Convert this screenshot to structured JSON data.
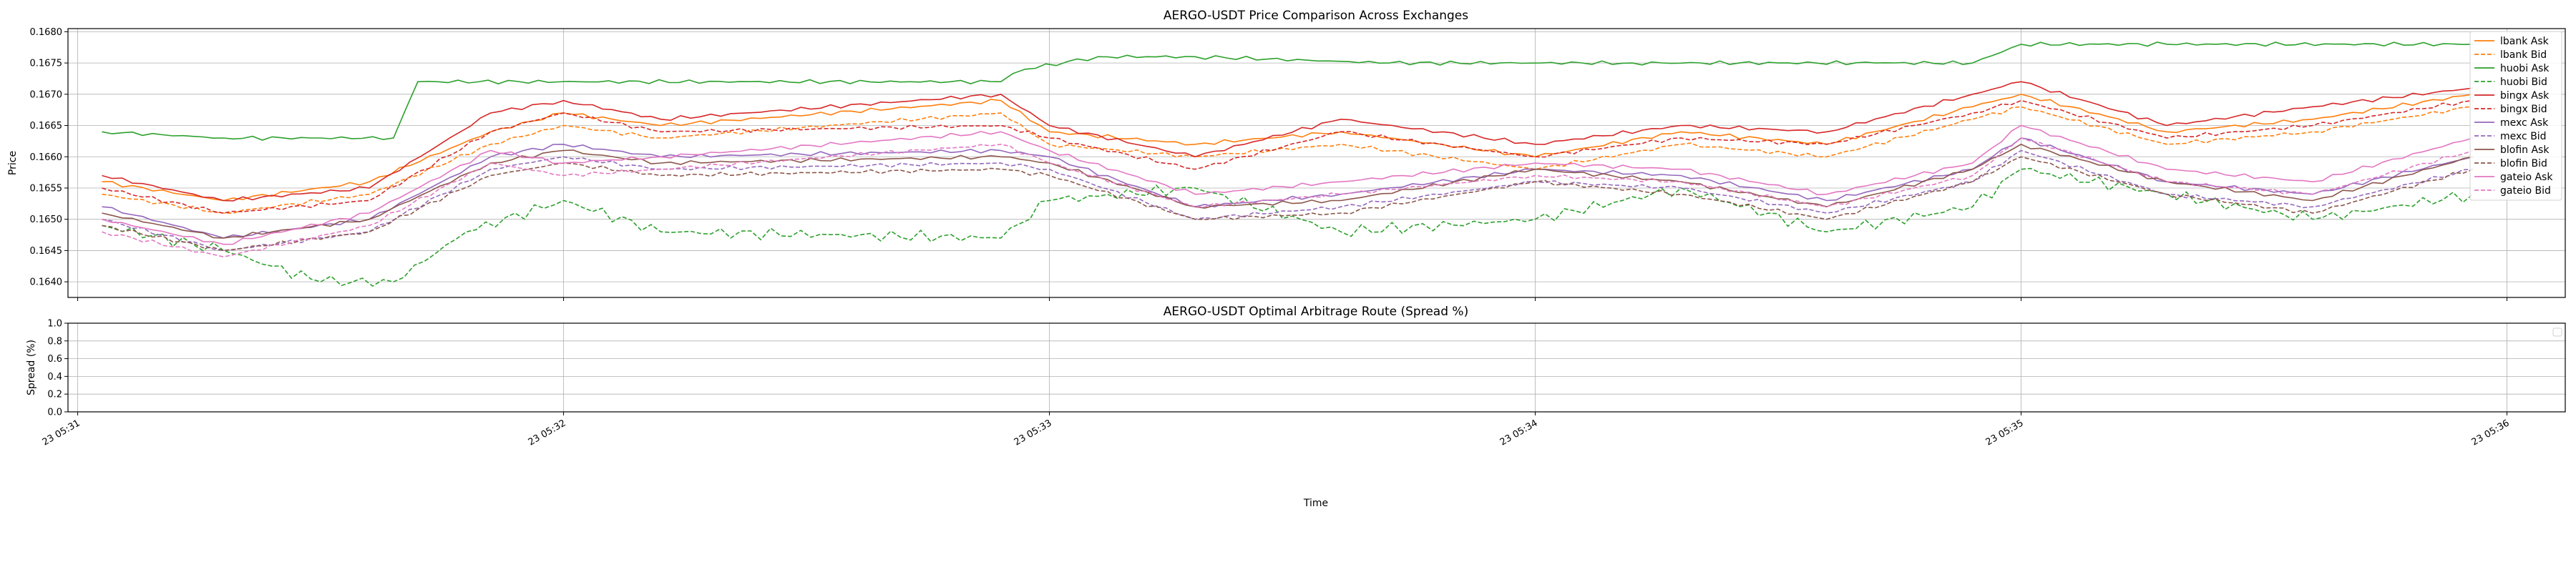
{
  "chart_data": [
    {
      "type": "line",
      "title": "AERGO-USDT Price Comparison Across Exchanges",
      "xlabel": "",
      "ylabel": "Price",
      "x_time_range": [
        "2023 05:31:03",
        "2023 05:35:57"
      ],
      "ylim": [
        0.16375,
        0.16805
      ],
      "y_ticks": [
        "0.1640",
        "0.1645",
        "0.1650",
        "0.1655",
        "0.1660",
        "0.1665",
        "0.1670",
        "0.1675",
        "0.1680"
      ],
      "y_tick_values": [
        0.164,
        0.1645,
        0.165,
        0.1655,
        0.166,
        0.1665,
        0.167,
        0.1675,
        0.168
      ],
      "x_ticks": [
        "23 05:31",
        "23 05:32",
        "23 05:33",
        "23 05:34",
        "23 05:35",
        "23 05:36"
      ],
      "x_tick_minutes": [
        31,
        32,
        33,
        34,
        35,
        36
      ],
      "grid": true,
      "legend_position": "right",
      "series": [
        {
          "name": "lbank Ask",
          "color": "#ff7f0e",
          "dash": "solid",
          "x": [
            31.05,
            31.3,
            31.6,
            31.85,
            32.0,
            32.2,
            32.9,
            33.0,
            33.3,
            33.6,
            34.0,
            34.3,
            34.6,
            34.9,
            35.0,
            35.3,
            35.6,
            35.93
          ],
          "y": [
            0.1656,
            0.1653,
            0.1656,
            0.1664,
            0.1667,
            0.1665,
            0.1669,
            0.1664,
            0.1662,
            0.1664,
            0.166,
            0.1664,
            0.1662,
            0.1668,
            0.167,
            0.1664,
            0.1666,
            0.167
          ]
        },
        {
          "name": "lbank Bid",
          "color": "#ff7f0e",
          "dash": "dashed",
          "x": [
            31.05,
            31.3,
            31.6,
            31.85,
            32.0,
            32.2,
            32.9,
            33.0,
            33.3,
            33.6,
            34.0,
            34.3,
            34.6,
            34.9,
            35.0,
            35.3,
            35.6,
            35.93
          ],
          "y": [
            0.1654,
            0.1651,
            0.1654,
            0.1662,
            0.1665,
            0.1663,
            0.1667,
            0.1662,
            0.166,
            0.1662,
            0.1658,
            0.1662,
            0.166,
            0.1666,
            0.1668,
            0.1662,
            0.1664,
            0.1668
          ]
        },
        {
          "name": "huobi Ask",
          "color": "#2ca02c",
          "dash": "solid",
          "x": [
            31.05,
            31.3,
            31.5,
            31.65,
            31.7,
            32.9,
            32.95,
            33.1,
            33.3,
            33.7,
            34.2,
            34.5,
            34.7,
            34.9,
            35.0,
            35.3,
            35.93
          ],
          "y": [
            0.1664,
            0.1663,
            0.1663,
            0.1663,
            0.1672,
            0.1672,
            0.1674,
            0.1676,
            0.1676,
            0.1675,
            0.1675,
            0.1675,
            0.1675,
            0.1675,
            0.1678,
            0.1678,
            0.1678
          ]
        },
        {
          "name": "huobi Bid",
          "color": "#2ca02c",
          "dash": "dashed",
          "x": [
            31.05,
            31.3,
            31.5,
            31.65,
            31.8,
            32.0,
            32.2,
            32.9,
            33.0,
            33.3,
            33.6,
            34.0,
            34.3,
            34.6,
            34.9,
            35.0,
            35.3,
            35.6,
            35.93
          ],
          "y": [
            0.1649,
            0.1645,
            0.164,
            0.164,
            0.1648,
            0.1653,
            0.1648,
            0.1647,
            0.1653,
            0.1655,
            0.1648,
            0.165,
            0.1655,
            0.1648,
            0.1652,
            0.1658,
            0.1654,
            0.165,
            0.1654
          ]
        },
        {
          "name": "bingx Ask",
          "color": "#d62728",
          "dash": "solid",
          "x": [
            31.05,
            31.3,
            31.6,
            31.85,
            32.0,
            32.2,
            32.9,
            33.0,
            33.3,
            33.6,
            34.0,
            34.3,
            34.6,
            34.9,
            35.0,
            35.3,
            35.6,
            35.93
          ],
          "y": [
            0.1657,
            0.1653,
            0.1655,
            0.1667,
            0.1669,
            0.1666,
            0.167,
            0.1665,
            0.166,
            0.1666,
            0.1662,
            0.1665,
            0.1664,
            0.167,
            0.1672,
            0.1665,
            0.1668,
            0.1671
          ]
        },
        {
          "name": "bingx Bid",
          "color": "#d62728",
          "dash": "dashed",
          "x": [
            31.05,
            31.3,
            31.6,
            31.85,
            32.0,
            32.2,
            32.9,
            33.0,
            33.3,
            33.6,
            34.0,
            34.3,
            34.6,
            34.9,
            35.0,
            35.3,
            35.6,
            35.93
          ],
          "y": [
            0.1655,
            0.1651,
            0.1653,
            0.1664,
            0.1667,
            0.1664,
            0.1665,
            0.1663,
            0.1658,
            0.1664,
            0.166,
            0.1663,
            0.1662,
            0.1667,
            0.1669,
            0.1663,
            0.1665,
            0.1669
          ]
        },
        {
          "name": "mexc Ask",
          "color": "#9467bd",
          "dash": "solid",
          "x": [
            31.05,
            31.3,
            31.6,
            31.85,
            32.0,
            32.2,
            32.9,
            33.0,
            33.3,
            33.6,
            34.0,
            34.3,
            34.6,
            34.9,
            35.0,
            35.3,
            35.6,
            35.93
          ],
          "y": [
            0.1652,
            0.1647,
            0.165,
            0.166,
            0.1662,
            0.166,
            0.1661,
            0.166,
            0.1652,
            0.1654,
            0.1658,
            0.1657,
            0.1653,
            0.1658,
            0.1663,
            0.1656,
            0.1654,
            0.166
          ]
        },
        {
          "name": "mexc Bid",
          "color": "#9467bd",
          "dash": "dashed",
          "x": [
            31.05,
            31.3,
            31.6,
            31.85,
            32.0,
            32.2,
            32.9,
            33.0,
            33.3,
            33.6,
            34.0,
            34.3,
            34.6,
            34.9,
            35.0,
            35.3,
            35.6,
            35.93
          ],
          "y": [
            0.165,
            0.1645,
            0.1648,
            0.1658,
            0.166,
            0.1658,
            0.1659,
            0.1658,
            0.165,
            0.1652,
            0.1656,
            0.1655,
            0.1651,
            0.1656,
            0.1661,
            0.1654,
            0.1652,
            0.1658
          ]
        },
        {
          "name": "blofin Ask",
          "color": "#8c564b",
          "dash": "solid",
          "x": [
            31.05,
            31.3,
            31.6,
            31.85,
            32.0,
            32.2,
            32.9,
            33.0,
            33.3,
            33.6,
            34.0,
            34.3,
            34.6,
            34.9,
            35.0,
            35.3,
            35.6,
            35.93
          ],
          "y": [
            0.1651,
            0.1647,
            0.165,
            0.1659,
            0.1661,
            0.1659,
            0.166,
            0.1659,
            0.1652,
            0.1653,
            0.1658,
            0.1656,
            0.1652,
            0.1658,
            0.1662,
            0.1656,
            0.1653,
            0.166
          ]
        },
        {
          "name": "blofin Bid",
          "color": "#8c564b",
          "dash": "dashed",
          "x": [
            31.05,
            31.3,
            31.6,
            31.85,
            32.0,
            32.2,
            32.9,
            33.0,
            33.3,
            33.6,
            34.0,
            34.3,
            34.6,
            34.9,
            35.0,
            35.3,
            35.6,
            35.93
          ],
          "y": [
            0.1649,
            0.1645,
            0.1648,
            0.1657,
            0.1659,
            0.1657,
            0.1658,
            0.1657,
            0.165,
            0.1651,
            0.1656,
            0.1654,
            0.165,
            0.1656,
            0.166,
            0.1654,
            0.1651,
            0.1658
          ]
        },
        {
          "name": "gateio Ask",
          "color": "#e377c2",
          "dash": "solid",
          "x": [
            31.05,
            31.3,
            31.6,
            31.85,
            32.0,
            32.2,
            32.9,
            33.0,
            33.3,
            33.6,
            34.0,
            34.3,
            34.6,
            34.9,
            35.0,
            35.3,
            35.6,
            35.93
          ],
          "y": [
            0.165,
            0.1646,
            0.1651,
            0.1661,
            0.1659,
            0.166,
            0.1664,
            0.1661,
            0.1654,
            0.1656,
            0.1659,
            0.1658,
            0.1654,
            0.1659,
            0.1665,
            0.1658,
            0.1656,
            0.1663
          ]
        },
        {
          "name": "gateio Bid",
          "color": "#e377c2",
          "dash": "dashed",
          "x": [
            31.05,
            31.3,
            31.6,
            31.85,
            32.0,
            32.2,
            32.9,
            33.0,
            33.3,
            33.6,
            34.0,
            34.3,
            34.6,
            34.9,
            35.0,
            35.3,
            35.6,
            35.93
          ],
          "y": [
            0.1648,
            0.1644,
            0.1649,
            0.1659,
            0.1657,
            0.1658,
            0.1662,
            0.1659,
            0.1652,
            0.1654,
            0.1657,
            0.1656,
            0.1652,
            0.1657,
            0.1663,
            0.1656,
            0.1654,
            0.1661
          ]
        }
      ]
    },
    {
      "type": "line",
      "title": "AERGO-USDT Optimal Arbitrage Route (Spread %)",
      "xlabel": "Time",
      "ylabel": "Spread (%)",
      "ylim": [
        0.0,
        1.0
      ],
      "y_ticks": [
        "0.0",
        "0.2",
        "0.4",
        "0.6",
        "0.8",
        "1.0"
      ],
      "y_tick_values": [
        0.0,
        0.2,
        0.4,
        0.6,
        0.8,
        1.0
      ],
      "x_ticks": [
        "23 05:31",
        "23 05:32",
        "23 05:33",
        "23 05:34",
        "23 05:35",
        "23 05:36"
      ],
      "x_tick_minutes": [
        31,
        32,
        33,
        34,
        35,
        36
      ],
      "grid": true,
      "legend_position": "top-right",
      "series": []
    }
  ]
}
